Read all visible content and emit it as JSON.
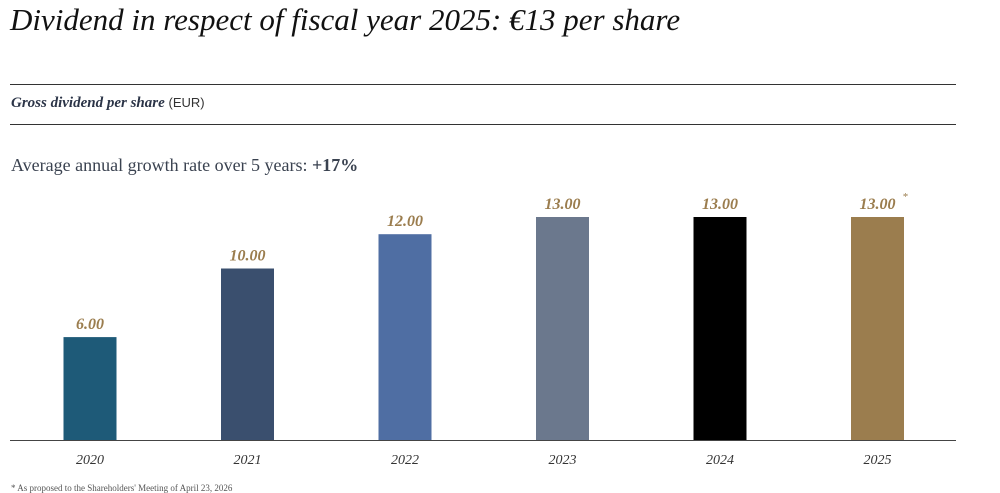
{
  "header": {
    "title": "Dividend in respect of fiscal year 2025: €13 per share",
    "subtitle": "Gross dividend per share",
    "unit": "(EUR)"
  },
  "growth": {
    "label": "Average annual growth rate over 5 years:",
    "value": "+17%"
  },
  "footnote": {
    "text": "* As proposed to the Shareholders' Meeting of April 23, 2026"
  },
  "colors": {
    "label_gold": "#9b7d4e",
    "axis": "#444444"
  },
  "chart_data": {
    "type": "bar",
    "title": "Gross dividend per share (EUR)",
    "categories": [
      "2020",
      "2021",
      "2022",
      "2023",
      "2024",
      "2025"
    ],
    "values": [
      6.0,
      10.0,
      12.0,
      13.0,
      13.0,
      13.0
    ],
    "value_labels": [
      "6.00",
      "10.00",
      "12.00",
      "13.00",
      "13.00",
      "13.00"
    ],
    "annotations": [
      "",
      "",
      "",
      "",
      "",
      "*"
    ],
    "bar_colors": [
      "#1e5a78",
      "#3a4f6e",
      "#4f6ea3",
      "#6b788d",
      "#000000",
      "#9b7d4e"
    ],
    "ylim": [
      0,
      13
    ],
    "xlabel": "",
    "ylabel": "",
    "grid": false
  }
}
